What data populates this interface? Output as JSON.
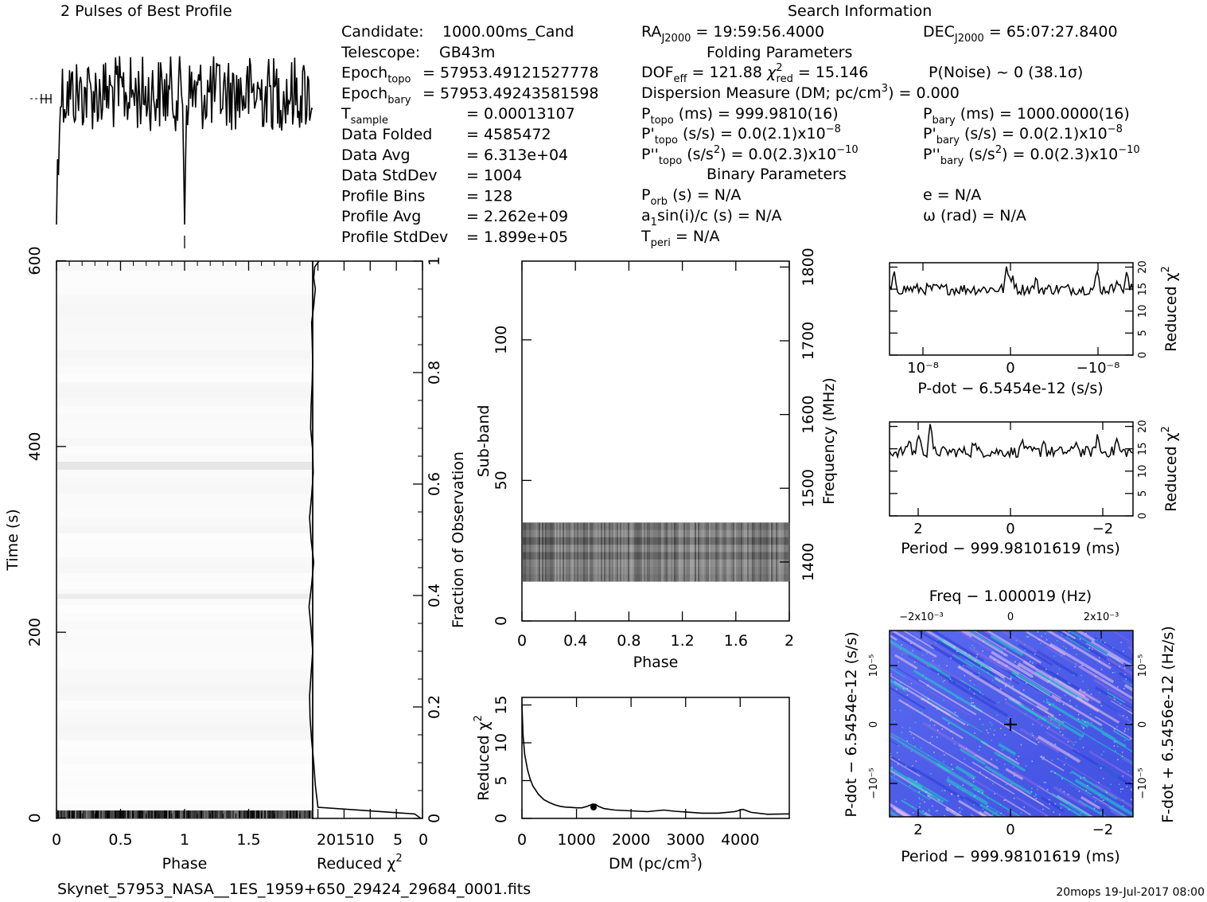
{
  "title": "2 Pulses of Best Profile",
  "search_title": "Search Information",
  "info": {
    "col1": [
      {
        "label": "Candidate:",
        "value": "1000.00ms_Cand"
      },
      {
        "label": "Telescope:",
        "value": "GB43m"
      },
      {
        "label": "Epoch",
        "sub": "topo",
        "value": "= 57953.49121527778"
      },
      {
        "label": "Epoch",
        "sub": "bary",
        "value": "= 57953.49243581598"
      },
      {
        "label": "T",
        "sub": "sample",
        "value": "=   0.00013107"
      },
      {
        "label": "Data Folded",
        "value": "=   4585472"
      },
      {
        "label": "Data Avg",
        "value": "=   6.313e+04"
      },
      {
        "label": "Data StdDev",
        "value": "=   1004"
      },
      {
        "label": "Profile Bins",
        "value": "=   128"
      },
      {
        "label": "Profile Avg",
        "value": "=   2.262e+09"
      },
      {
        "label": "Profile StdDev",
        "value": "=   1.899e+05"
      }
    ],
    "ra": "RA_J2000 = 19:59:56.4000",
    "dec": "DEC_J2000 = 65:07:27.8400",
    "folding_header": "Folding Parameters",
    "dof": "DOF_eff = 121.88",
    "chi": "χ²_red = 15.146",
    "pnoise": "P(Noise) ~ 0    (38.1σ)",
    "dm": "Dispersion Measure (DM; pc/cm³) = 0.000",
    "ptopo": "P_topo (ms) =  999.9810(16)",
    "pbary": "P_bary (ms) =  1000.0000(16)",
    "pdtopo": "P'_topo (s/s) = 0.0(2.1)x10⁻⁸",
    "pdbary": "P'_bary (s/s) = 0.0(2.1)x10⁻⁸",
    "pddtopo": "P''_topo (s/s²) = 0.0(2.3)x10⁻¹⁰",
    "pddbary": "P''_bary (s/s²) = 0.0(2.3)x10⁻¹⁰",
    "binary_header": "Binary Parameters",
    "porb": "P_orb (s) = N/A",
    "ecc": "e = N/A",
    "a1": "a1sin(i)/c (s) = N/A",
    "omega": "ω (rad) = N/A",
    "tperi": "T_peri = N/A"
  },
  "footer": {
    "filename": "Skynet_57953_NASA__1ES_1959+650_29424_29684_0001.fits",
    "stamp": "20mops 19-Jul-2017 08:00"
  },
  "chart_data": [
    {
      "type": "line",
      "name": "pulse-profile",
      "title": "2 Pulses of Best Profile",
      "x_range": [
        0,
        2
      ],
      "note": "noisy profile, sharp dip near phase 0/1"
    },
    {
      "type": "heatmap",
      "name": "time-vs-phase",
      "xlabel": "Phase",
      "ylabel": "Time (s)",
      "xlim": [
        0,
        2
      ],
      "ylim": [
        0,
        600
      ],
      "x_ticks": [
        "0",
        "0.5",
        "1",
        "1.5"
      ],
      "y_ticks": [
        "0",
        "200",
        "400",
        "600"
      ]
    },
    {
      "type": "line",
      "name": "reduced-chi2-vs-time",
      "xlabel": "Reduced χ²",
      "ylabel": "Fraction of Observation",
      "x_ticks": [
        "20",
        "15",
        "10",
        "5",
        "0"
      ],
      "y_ticks": [
        "0",
        "0.2",
        "0.4",
        "0.6",
        "0.8",
        "1"
      ],
      "x": [
        0.3,
        1.5,
        20,
        20.5,
        20.8,
        21.2,
        21.5,
        21.6,
        21.3,
        21.0,
        21.3,
        21.7,
        21.2,
        20.8,
        21.3,
        21.6,
        21.2,
        20.9,
        21.0,
        21.4,
        21.3,
        21.1,
        21.0,
        21.1,
        21.2,
        20.8,
        20.5,
        20.8,
        20.6,
        19.8
      ],
      "y": [
        0.0,
        0.008,
        0.02,
        0.06,
        0.1,
        0.14,
        0.18,
        0.22,
        0.26,
        0.3,
        0.34,
        0.38,
        0.42,
        0.46,
        0.5,
        0.54,
        0.58,
        0.62,
        0.66,
        0.7,
        0.74,
        0.78,
        0.82,
        0.86,
        0.89,
        0.92,
        0.95,
        0.97,
        0.99,
        1.0
      ]
    },
    {
      "type": "heatmap",
      "name": "subband-vs-phase",
      "xlabel": "Phase",
      "ylabel": "Sub-band",
      "y2label": "Frequency (MHz)",
      "xlim": [
        0,
        2
      ],
      "ylim": [
        0,
        128
      ],
      "x_ticks": [
        "0",
        "0.4",
        "0.8",
        "1.2",
        "1.6",
        "2"
      ],
      "y_ticks": [
        "0",
        "50",
        "100"
      ],
      "y2_ticks": [
        "1400",
        "1500",
        "1600",
        "1700",
        "1800"
      ],
      "band": [
        14,
        35
      ]
    },
    {
      "type": "line",
      "name": "reduced-chi2-vs-dm",
      "xlabel": "DM (pc/cm³)",
      "ylabel": "Reduced χ²",
      "xlim": [
        0,
        4900
      ],
      "ylim": [
        0,
        16
      ],
      "x_ticks": [
        "0",
        "1000",
        "2000",
        "3000",
        "4000"
      ],
      "y_ticks": [
        "0",
        "5",
        "10",
        "15"
      ],
      "x": [
        0,
        20,
        50,
        100,
        150,
        200,
        300,
        400,
        500,
        600,
        700,
        800,
        900,
        1000,
        1100,
        1200,
        1300,
        1350,
        1400,
        1500,
        1700,
        2000,
        2300,
        2600,
        2800,
        3000,
        3300,
        3600,
        3900,
        4050,
        4200,
        4500,
        4900
      ],
      "y": [
        15,
        11,
        8.5,
        6.5,
        5.2,
        4.3,
        3.2,
        2.5,
        2.1,
        1.8,
        1.6,
        1.5,
        1.45,
        1.4,
        1.4,
        1.6,
        1.9,
        1.85,
        1.6,
        1.3,
        1.1,
        1.0,
        0.9,
        1.1,
        0.95,
        0.85,
        0.7,
        0.7,
        0.9,
        1.2,
        0.8,
        0.55,
        0.6
      ]
    },
    {
      "type": "line",
      "name": "pdot-search",
      "xlabel": "P-dot − 6.5454e-12 (s/s)",
      "ylabel": "Reduced χ²",
      "x_ticks": [
        "10⁻⁸",
        "0",
        "−10⁻⁸"
      ],
      "y_ticks": [
        "0",
        "5",
        "10",
        "15",
        "20"
      ],
      "ylim": [
        0,
        20
      ]
    },
    {
      "type": "line",
      "name": "period-search",
      "xlabel": "Period − 999.98101619 (ms)",
      "ylabel": "Reduced χ²",
      "x_ticks": [
        "2",
        "0",
        "−2"
      ],
      "y_ticks": [
        "0",
        "5",
        "10",
        "15",
        "20"
      ],
      "ylim": [
        0,
        20
      ]
    },
    {
      "type": "heatmap",
      "name": "p-pdot-plane",
      "title": "Freq − 1.000019 (Hz)",
      "xlabel": "Period − 999.98101619 (ms)",
      "ylabel": "P-dot − 6.5454e-12 (s/s)",
      "y2label": "F-dot + 6.5456e-12 (Hz/s)",
      "x_ticks": [
        "2",
        "0",
        "−2"
      ],
      "top_ticks": [
        "−2x10⁻³",
        "0",
        "2x10⁻³"
      ],
      "y_ticks": [
        "10⁻⁵",
        "0",
        "−10⁻⁵"
      ],
      "y2_ticks": [
        "10⁻⁵",
        "0",
        "−10⁻⁵"
      ]
    }
  ],
  "labels": {
    "phase": "Phase",
    "time": "Time (s)",
    "redchi": "Reduced χ",
    "frac": "Fraction of Observation",
    "subband": "Sub-band",
    "freq": "Frequency (MHz)",
    "dm": "DM (pc/cm",
    "pdot": "P-dot − 6.5454e-12 (s/s)",
    "period": "Period − 999.98101619 (ms)",
    "freqhz": "Freq − 1.000019 (Hz)",
    "pdot_left": "P-dot − 6.5454e-12 (s/s)",
    "fdot_right": "F-dot + 6.5456e-12 (Hz/s)"
  }
}
